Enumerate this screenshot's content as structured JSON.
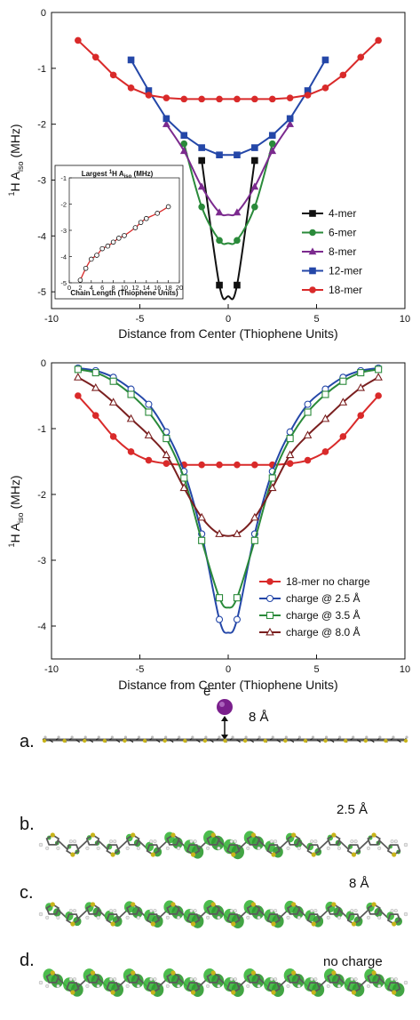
{
  "chart_data": [
    {
      "type": "line",
      "xlabel": "Distance from Center (Thiophene Units)",
      "ylabel": "¹H A_iso (MHz)",
      "xlim": [
        -10,
        10
      ],
      "ylim": [
        -5.3,
        0
      ],
      "xticks": [
        -10,
        -5,
        0,
        5,
        10
      ],
      "yticks": [
        0,
        -1,
        -2,
        -3,
        -4,
        -5
      ],
      "legend": "center-right",
      "series": [
        {
          "name": "4-mer",
          "color": "#111111",
          "marker": "square",
          "x": [
            -1.5,
            -0.5,
            0.5,
            1.5
          ],
          "y": [
            -2.65,
            -4.88,
            -4.88,
            -2.65
          ]
        },
        {
          "name": "6-mer",
          "color": "#2a8a3a",
          "marker": "circle",
          "x": [
            -2.5,
            -1.5,
            -0.5,
            0.5,
            1.5,
            2.5
          ],
          "y": [
            -2.35,
            -3.48,
            -4.08,
            -4.08,
            -3.48,
            -2.35
          ]
        },
        {
          "name": "8-mer",
          "color": "#7b2a8e",
          "marker": "triangle",
          "x": [
            -3.5,
            -2.5,
            -1.5,
            -0.5,
            0.5,
            1.5,
            2.5,
            3.5
          ],
          "y": [
            -2.0,
            -2.48,
            -3.12,
            -3.58,
            -3.58,
            -3.12,
            -2.48,
            -2.0
          ]
        },
        {
          "name": "12-mer",
          "color": "#2447a8",
          "marker": "square",
          "x": [
            -5.5,
            -4.5,
            -3.5,
            -2.5,
            -1.5,
            -0.5,
            0.5,
            1.5,
            2.5,
            3.5,
            4.5,
            5.5
          ],
          "y": [
            -0.85,
            -1.4,
            -1.9,
            -2.2,
            -2.42,
            -2.55,
            -2.55,
            -2.42,
            -2.2,
            -1.9,
            -1.4,
            -0.85
          ]
        },
        {
          "name": "18-mer",
          "color": "#d92a2a",
          "marker": "circle",
          "x": [
            -8.5,
            -7.5,
            -6.5,
            -5.5,
            -4.5,
            -3.5,
            -2.5,
            -1.5,
            -0.5,
            0.5,
            1.5,
            2.5,
            3.5,
            4.5,
            5.5,
            6.5,
            7.5,
            8.5
          ],
          "y": [
            -0.5,
            -0.8,
            -1.12,
            -1.35,
            -1.48,
            -1.53,
            -1.55,
            -1.55,
            -1.55,
            -1.55,
            -1.55,
            -1.55,
            -1.53,
            -1.48,
            -1.35,
            -1.12,
            -0.8,
            -0.5
          ]
        }
      ],
      "inset": {
        "title": "Largest ¹H A_iso (MHz)",
        "xlabel": "Chain Length (Thiophene Units)",
        "xlim": [
          0,
          20
        ],
        "ylim": [
          -5,
          -1
        ],
        "xticks": [
          0,
          2,
          4,
          6,
          8,
          10,
          12,
          14,
          16,
          18,
          20
        ],
        "yticks": [
          -1,
          -2,
          -3,
          -4,
          -5
        ],
        "x": [
          2,
          3,
          4,
          5,
          6,
          7,
          8,
          9,
          10,
          12,
          13,
          14,
          16,
          18
        ],
        "y": [
          -4.9,
          -4.45,
          -4.1,
          -3.95,
          -3.7,
          -3.6,
          -3.45,
          -3.3,
          -3.2,
          -2.9,
          -2.7,
          -2.55,
          -2.35,
          -2.1
        ]
      }
    },
    {
      "type": "line",
      "xlabel": "Distance from Center (Thiophene Units)",
      "ylabel": "¹H A_iso (MHz)",
      "xlim": [
        -10,
        10
      ],
      "ylim": [
        -4.5,
        0
      ],
      "xticks": [
        -10,
        -5,
        0,
        5,
        10
      ],
      "yticks": [
        0,
        -1,
        -2,
        -3,
        -4
      ],
      "legend": "lower-right",
      "series": [
        {
          "name": "18-mer no charge",
          "color": "#d92a2a",
          "marker": "circle-filled",
          "x": [
            -8.5,
            -7.5,
            -6.5,
            -5.5,
            -4.5,
            -3.5,
            -2.5,
            -1.5,
            -0.5,
            0.5,
            1.5,
            2.5,
            3.5,
            4.5,
            5.5,
            6.5,
            7.5,
            8.5
          ],
          "y": [
            -0.5,
            -0.8,
            -1.12,
            -1.35,
            -1.48,
            -1.53,
            -1.55,
            -1.55,
            -1.55,
            -1.55,
            -1.55,
            -1.55,
            -1.53,
            -1.48,
            -1.35,
            -1.12,
            -0.8,
            -0.5
          ]
        },
        {
          "name": "charge @ 2.5 Å",
          "color": "#2447a8",
          "marker": "circle-open",
          "x": [
            -8.5,
            -7.5,
            -6.5,
            -5.5,
            -4.5,
            -3.5,
            -2.5,
            -1.5,
            -0.5,
            0.5,
            1.5,
            2.5,
            3.5,
            4.5,
            5.5,
            6.5,
            7.5,
            8.5
          ],
          "y": [
            -0.08,
            -0.12,
            -0.22,
            -0.4,
            -0.63,
            -1.05,
            -1.65,
            -2.6,
            -3.9,
            -3.9,
            -2.6,
            -1.65,
            -1.05,
            -0.63,
            -0.4,
            -0.22,
            -0.12,
            -0.08
          ]
        },
        {
          "name": "charge @ 3.5 Å",
          "color": "#2a8a3a",
          "marker": "square-open",
          "x": [
            -8.5,
            -7.5,
            -6.5,
            -5.5,
            -4.5,
            -3.5,
            -2.5,
            -1.5,
            -0.5,
            0.5,
            1.5,
            2.5,
            3.5,
            4.5,
            5.5,
            6.5,
            7.5,
            8.5
          ],
          "y": [
            -0.1,
            -0.15,
            -0.28,
            -0.48,
            -0.75,
            -1.15,
            -1.75,
            -2.7,
            -3.57,
            -3.57,
            -2.7,
            -1.75,
            -1.15,
            -0.75,
            -0.48,
            -0.28,
            -0.15,
            -0.1
          ]
        },
        {
          "name": "charge @ 8.0 Å",
          "color": "#7a1f1f",
          "marker": "triangle-open",
          "x": [
            -8.5,
            -7.5,
            -6.5,
            -5.5,
            -4.5,
            -3.5,
            -2.5,
            -1.5,
            -0.5,
            0.5,
            1.5,
            2.5,
            3.5,
            4.5,
            5.5,
            6.5,
            7.5,
            8.5
          ],
          "y": [
            -0.22,
            -0.38,
            -0.6,
            -0.85,
            -1.1,
            -1.4,
            -1.9,
            -2.35,
            -2.6,
            -2.6,
            -2.35,
            -1.9,
            -1.4,
            -1.1,
            -0.85,
            -0.6,
            -0.38,
            -0.22
          ]
        }
      ]
    }
  ],
  "panels": [
    {
      "label": "a.",
      "annotation": "8 Å",
      "electron": "e⁻"
    },
    {
      "label": "b.",
      "annotation": "2.5 Å"
    },
    {
      "label": "c.",
      "annotation": "8 Å"
    },
    {
      "label": "d.",
      "annotation": "no charge"
    }
  ],
  "colors": {
    "backbone": "#5a5a5a",
    "sulfur": "#c8b41a",
    "hydrogen": "#e8e8e8",
    "spin_density": "#39b53a",
    "electron": "#7a1f8c"
  }
}
